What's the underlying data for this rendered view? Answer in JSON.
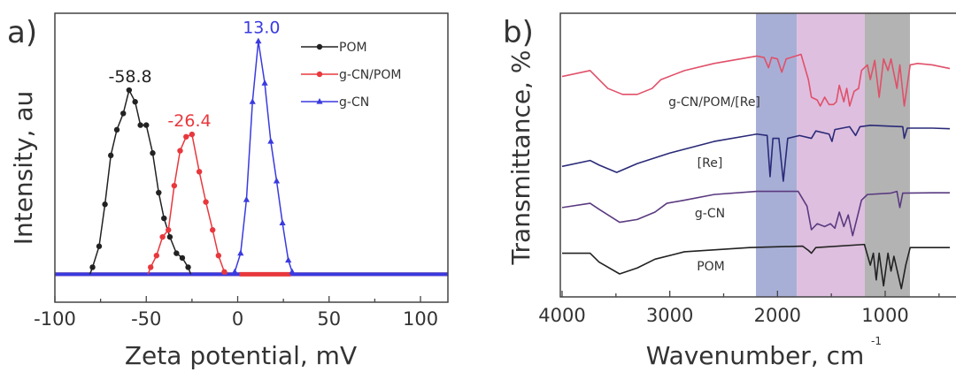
{
  "chart_data": [
    {
      "panel_label": "a)",
      "type": "line",
      "xlabel": "Zeta potential, mV",
      "ylabel": "Intensity, au",
      "xlim": [
        -100,
        115
      ],
      "ylim": [
        -0.12,
        1.12
      ],
      "xticks": [
        -100,
        -50,
        0,
        50,
        100
      ],
      "grid": false,
      "legend_position": "top-right",
      "series": [
        {
          "name": "POM",
          "color": "#222222",
          "marker": "circle",
          "x": [
            -79.4,
            -75.8,
            -72.6,
            -69.4,
            -66.1,
            -62.6,
            -59.4,
            -56.1,
            -53.2,
            -50.0,
            -46.5,
            -43.2,
            -40.3,
            -37.1,
            -33.5,
            -30.3,
            -27.1
          ],
          "y": [
            0.03,
            0.12,
            0.3,
            0.51,
            0.62,
            0.69,
            0.79,
            0.74,
            0.64,
            0.64,
            0.52,
            0.35,
            0.24,
            0.16,
            0.09,
            0.07,
            0.03
          ]
        },
        {
          "name": "g-CN/POM",
          "color": "#e8383d",
          "marker": "circle",
          "x": [
            -47.6,
            -44.4,
            -41.1,
            -37.9,
            -34.7,
            -31.5,
            -28.2,
            -25.0,
            -21.0,
            -17.4,
            -13.7,
            -10.5,
            -7.3
          ],
          "y": [
            0.03,
            0.08,
            0.16,
            0.19,
            0.38,
            0.53,
            0.59,
            0.6,
            0.44,
            0.31,
            0.19,
            0.08,
            0.01
          ]
        },
        {
          "name": "g-CN",
          "color": "#3a3ae0",
          "marker": "triangle",
          "x": [
            -1.6,
            1.6,
            4.8,
            8.1,
            11.3,
            14.8,
            18.1,
            21.3,
            24.5,
            27.7,
            29.8
          ],
          "y": [
            0.01,
            0.09,
            0.32,
            0.74,
            1.0,
            0.82,
            0.57,
            0.4,
            0.22,
            0.06,
            0.01
          ]
        }
      ],
      "annotations": [
        {
          "text": "-58.8",
          "x": -58.8,
          "color": "#222222"
        },
        {
          "text": "-26.4",
          "x": -26.4,
          "color": "#e8383d"
        },
        {
          "text": "13.0",
          "x": 13.0,
          "color": "#3a3ae0"
        }
      ]
    },
    {
      "panel_label": "b)",
      "type": "line",
      "xlabel": "Wavenumber, cm",
      "xlabel_superscript": "-1",
      "ylabel": "Transmittance, %",
      "xlim": [
        4000,
        400
      ],
      "ylim": [
        0,
        100
      ],
      "xticks": [
        4000,
        3000,
        2000,
        1000
      ],
      "grid": false,
      "shaded_regions": [
        {
          "from": 2200,
          "to": 1820,
          "color": "#9ea6d2"
        },
        {
          "from": 1820,
          "to": 1190,
          "color": "#dab8dc"
        },
        {
          "from": 1190,
          "to": 770,
          "color": "#ababab"
        }
      ],
      "series": [
        {
          "name": "g-CN/POM/[Re]",
          "color": "#e0506a",
          "x": [
            4000,
            3740,
            3657,
            3575,
            3439,
            3302,
            3164,
            3082,
            2864,
            2589,
            2192,
            2124,
            2083,
            2055,
            2001,
            1960,
            1919,
            1781,
            1713,
            1685,
            1631,
            1603,
            1562,
            1521,
            1480,
            1453,
            1426,
            1384,
            1357,
            1330,
            1288,
            1247,
            1220,
            1165,
            1138,
            1097,
            1056,
            1015,
            974,
            946,
            891,
            864,
            823,
            768,
            699,
            563,
            400
          ],
          "y": [
            77.7,
            79.8,
            76.6,
            73.5,
            71.4,
            71.4,
            73.5,
            76.6,
            79.8,
            82.3,
            84.9,
            84.4,
            80.8,
            84.4,
            83.9,
            79.2,
            83.9,
            85.5,
            76.6,
            70.4,
            69.4,
            67.3,
            70.4,
            67.8,
            67.8,
            68.8,
            74.6,
            68.8,
            73.5,
            67.3,
            72.5,
            73.5,
            79.8,
            81.8,
            76.6,
            83.4,
            70.4,
            83.9,
            79.8,
            83.9,
            73.5,
            81.8,
            67.3,
            81.8,
            82.3,
            81.8,
            80.5
          ]
        },
        {
          "name": "[Re]",
          "color": "#2a2a78",
          "x": [
            4000,
            3740,
            3657,
            3493,
            3302,
            3001,
            2589,
            2192,
            2096,
            2069,
            2042,
            1987,
            1946,
            1905,
            1795,
            1685,
            1644,
            1521,
            1494,
            1467,
            1330,
            1275,
            1234,
            1138,
            837,
            823,
            795,
            563,
            400
          ],
          "y": [
            46.0,
            48.1,
            46.5,
            43.9,
            47.0,
            50.7,
            54.8,
            57.4,
            56.9,
            42.4,
            55.9,
            55.9,
            40.8,
            55.9,
            56.9,
            55.9,
            58.5,
            57.4,
            54.8,
            59.0,
            60.0,
            56.9,
            60.0,
            60.5,
            60.0,
            55.9,
            59.5,
            59.5,
            59.3
          ]
        },
        {
          "name": "g-CN",
          "color": "#5a3a80",
          "x": [
            4000,
            3740,
            3657,
            3466,
            3302,
            3137,
            3027,
            2864,
            2589,
            2192,
            1808,
            1726,
            1685,
            1631,
            1562,
            1508,
            1467,
            1426,
            1384,
            1343,
            1302,
            1261,
            1220,
            1165,
            946,
            891,
            864,
            837,
            563,
            400
          ],
          "y": [
            31.5,
            33.0,
            30.9,
            26.3,
            27.3,
            29.9,
            33.0,
            34.1,
            36.1,
            37.2,
            37.2,
            32.0,
            23.7,
            25.8,
            24.8,
            25.8,
            24.2,
            29.9,
            24.8,
            28.9,
            21.6,
            27.8,
            34.1,
            36.1,
            36.6,
            37.2,
            31.5,
            36.6,
            36.7,
            36.7
          ]
        },
        {
          "name": "POM",
          "color": "#222222",
          "x": [
            4000,
            3740,
            3657,
            3466,
            3302,
            3137,
            2864,
            2260,
            1767,
            1713,
            1685,
            1644,
            1193,
            1138,
            1110,
            1083,
            1056,
            1015,
            974,
            946,
            919,
            850,
            809,
            768,
            563,
            400
          ],
          "y": [
            15.4,
            15.4,
            12.3,
            8.1,
            10.2,
            13.3,
            15.9,
            17.4,
            17.9,
            16.4,
            15.4,
            17.4,
            18.5,
            11.2,
            15.4,
            6.0,
            15.4,
            3.9,
            15.4,
            9.1,
            14.3,
            2.9,
            11.2,
            17.4,
            17.4,
            17.4
          ]
        }
      ]
    }
  ]
}
